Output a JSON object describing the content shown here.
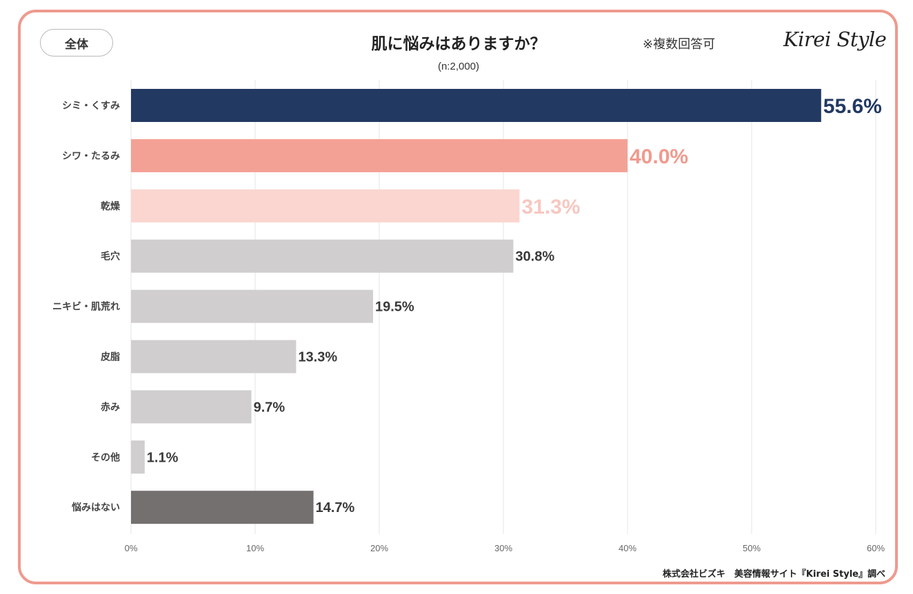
{
  "header": {
    "tag": "全体",
    "title": "肌に悩みはありますか？",
    "sample": "(n:2,000)",
    "note": "※複数回答可",
    "logo": "Kirei Style"
  },
  "footer": {
    "source": "株式会社ビズキ　美容情報サイト『Kirei Style』調べ"
  },
  "chart_data": {
    "type": "bar",
    "orientation": "horizontal",
    "title": "肌に悩みはありますか？",
    "subtitle": "(n:2,000)",
    "categories": [
      "シミ・くすみ",
      "シワ・たるみ",
      "乾燥",
      "毛穴",
      "ニキビ・肌荒れ",
      "皮脂",
      "赤み",
      "その他",
      "悩みはない"
    ],
    "values": [
      55.6,
      40.0,
      31.3,
      30.8,
      19.5,
      13.3,
      9.7,
      1.1,
      14.7
    ],
    "value_labels": [
      "55.6%",
      "40.0%",
      "31.3%",
      "30.8%",
      "19.5%",
      "13.3%",
      "9.7%",
      "1.1%",
      "14.7%"
    ],
    "bar_colors": [
      "#223962",
      "#f4a195",
      "#fbd6d0",
      "#d0cecf",
      "#d0cecf",
      "#d0cecf",
      "#d0cecf",
      "#d0cecf",
      "#757070"
    ],
    "label_colors": [
      "#223962",
      "#f09a8e",
      "#f7c7c0",
      "#3a3a3a",
      "#3a3a3a",
      "#3a3a3a",
      "#3a3a3a",
      "#3a3a3a",
      "#3a3a3a"
    ],
    "xlim": [
      0,
      60
    ],
    "xticks": [
      0,
      10,
      20,
      30,
      40,
      50,
      60
    ],
    "xtick_labels": [
      "0%",
      "10%",
      "20%",
      "30%",
      "40%",
      "50%",
      "60%"
    ],
    "grid": true
  }
}
